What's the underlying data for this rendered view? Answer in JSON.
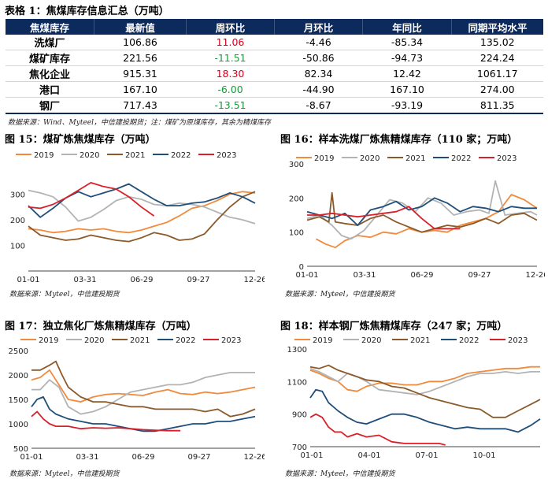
{
  "table": {
    "title": "表格 1：焦煤库存信息汇总（万吨）",
    "headers": [
      "焦煤库存",
      "最新值",
      "周环比",
      "月环比",
      "年同比",
      "同期平均水平"
    ],
    "rows": [
      {
        "name": "洗煤厂",
        "latest": "106.86",
        "wow": "11.06",
        "mom": "-4.46",
        "yoy": "-85.34",
        "avg": "135.02"
      },
      {
        "name": "煤矿库存",
        "latest": "221.56",
        "wow": "-11.51",
        "mom": "-50.86",
        "yoy": "-94.73",
        "avg": "224.24"
      },
      {
        "name": "焦化企业",
        "latest": "915.31",
        "wow": "18.30",
        "mom": "82.34",
        "yoy": "12.42",
        "avg": "1061.17"
      },
      {
        "name": "港口",
        "latest": "167.10",
        "wow": "-6.00",
        "mom": "-44.90",
        "yoy": "167.10",
        "avg": "274.00"
      },
      {
        "name": "钢厂",
        "latest": "717.43",
        "wow": "-13.51",
        "mom": "-8.67",
        "yoy": "-93.19",
        "avg": "811.35"
      }
    ],
    "source": "数据来源：Wind、Myteel，中信建投期货；注：煤矿为原煤库存，其余为精煤库存"
  },
  "colors": {
    "2019": "#f28a3c",
    "2020": "#b3b3b3",
    "2021": "#8b5a2b",
    "2022": "#1f4e79",
    "2023": "#d9202a",
    "header": "#0d2a5c",
    "positive": "#d0021b",
    "negative": "#1a9a3a"
  },
  "chart_data": [
    {
      "id": "c15",
      "type": "line",
      "title": "图 15：煤矿炼焦煤库存（万吨）",
      "source": "数据来源：Myteel，中信建投期货",
      "x_ticks": [
        "01-01",
        "03-31",
        "06-29",
        "09-27",
        "12-26"
      ],
      "ylim": [
        0,
        400
      ],
      "y_ticks": [
        0,
        100,
        200,
        300,
        400
      ],
      "y_tick_labels": [
        "",
        "100",
        "200",
        "300",
        ""
      ],
      "x_range": [
        1,
        360
      ],
      "series": [
        {
          "name": "2019",
          "x": [
            1,
            20,
            40,
            60,
            80,
            100,
            120,
            140,
            160,
            180,
            200,
            220,
            240,
            260,
            280,
            300,
            320,
            340,
            360
          ],
          "values": [
            165,
            160,
            150,
            155,
            165,
            160,
            165,
            155,
            150,
            160,
            175,
            190,
            215,
            245,
            255,
            275,
            300,
            310,
            305
          ]
        },
        {
          "name": "2020",
          "x": [
            1,
            20,
            40,
            60,
            80,
            100,
            120,
            140,
            160,
            180,
            200,
            220,
            240,
            260,
            280,
            300,
            320,
            340,
            360
          ],
          "values": [
            315,
            305,
            290,
            250,
            195,
            210,
            240,
            275,
            290,
            280,
            260,
            255,
            265,
            260,
            250,
            230,
            210,
            200,
            185
          ]
        },
        {
          "name": "2021",
          "x": [
            1,
            20,
            40,
            60,
            80,
            100,
            120,
            140,
            160,
            180,
            200,
            220,
            240,
            260,
            280,
            300,
            320,
            340,
            360
          ],
          "values": [
            175,
            140,
            130,
            120,
            125,
            140,
            130,
            120,
            115,
            130,
            150,
            140,
            120,
            125,
            145,
            200,
            250,
            290,
            310
          ]
        },
        {
          "name": "2022",
          "x": [
            1,
            20,
            40,
            60,
            80,
            100,
            120,
            140,
            160,
            180,
            200,
            220,
            240,
            260,
            280,
            300,
            320,
            340,
            360
          ],
          "values": [
            255,
            210,
            245,
            285,
            310,
            290,
            305,
            320,
            340,
            310,
            280,
            255,
            255,
            265,
            270,
            285,
            305,
            290,
            265
          ]
        },
        {
          "name": "2023",
          "x": [
            1,
            20,
            40,
            60,
            80,
            100,
            120,
            140,
            160,
            180,
            200
          ],
          "values": [
            250,
            245,
            260,
            285,
            315,
            345,
            330,
            320,
            290,
            250,
            215
          ]
        }
      ]
    },
    {
      "id": "c16",
      "type": "line",
      "title": "图 16：样本洗煤厂炼焦精煤库存（110 家；万吨）",
      "source": "数据来源：Myteel，中信建投期货",
      "x_ticks": [
        "01-01",
        "03-31",
        "06-29",
        "09-27",
        "12-26"
      ],
      "ylim": [
        0,
        300
      ],
      "y_ticks": [
        0,
        100,
        200,
        300
      ],
      "y_tick_labels": [
        "0",
        "100",
        "200",
        "300"
      ],
      "x_range": [
        1,
        360
      ],
      "series": [
        {
          "name": "2019",
          "x": [
            15,
            30,
            45,
            60,
            80,
            100,
            120,
            140,
            160,
            180,
            200,
            220,
            240,
            260,
            280,
            300,
            320,
            340,
            360
          ],
          "values": [
            80,
            65,
            55,
            75,
            90,
            85,
            100,
            95,
            110,
            100,
            105,
            100,
            120,
            130,
            140,
            160,
            210,
            195,
            170
          ]
        },
        {
          "name": "2020",
          "x": [
            1,
            20,
            40,
            55,
            70,
            90,
            110,
            130,
            150,
            170,
            190,
            210,
            230,
            250,
            270,
            285,
            295,
            310,
            330,
            350,
            360
          ],
          "values": [
            140,
            150,
            120,
            90,
            80,
            105,
            150,
            195,
            185,
            160,
            200,
            185,
            150,
            160,
            165,
            155,
            250,
            150,
            155,
            160,
            150
          ]
        },
        {
          "name": "2021",
          "x": [
            1,
            20,
            35,
            40,
            45,
            60,
            80,
            100,
            120,
            140,
            160,
            180,
            200,
            220,
            240,
            260,
            280,
            300,
            320,
            340,
            360
          ],
          "values": [
            135,
            145,
            130,
            215,
            130,
            125,
            120,
            140,
            150,
            130,
            115,
            100,
            110,
            120,
            115,
            125,
            140,
            125,
            150,
            155,
            135
          ]
        },
        {
          "name": "2022",
          "x": [
            1,
            20,
            40,
            60,
            80,
            100,
            120,
            140,
            160,
            180,
            200,
            220,
            240,
            260,
            280,
            300,
            320,
            340,
            360
          ],
          "values": [
            160,
            150,
            140,
            155,
            120,
            165,
            175,
            190,
            165,
            175,
            200,
            185,
            160,
            175,
            170,
            160,
            175,
            170,
            170
          ]
        },
        {
          "name": "2023",
          "x": [
            1,
            20,
            40,
            60,
            80,
            100,
            120,
            140,
            160,
            180,
            200,
            220,
            240
          ],
          "values": [
            150,
            150,
            155,
            150,
            145,
            150,
            155,
            160,
            175,
            140,
            110,
            110,
            110
          ]
        }
      ]
    },
    {
      "id": "c17",
      "type": "line",
      "title": "图 17：独立焦化厂炼焦精煤库存（万吨）",
      "source": "数据来源：Myteel，中信建投期货",
      "x_ticks": [
        "01-01",
        "03-31",
        "06-29",
        "09-27",
        "12-26"
      ],
      "ylim": [
        500,
        2500
      ],
      "y_ticks": [
        500,
        1000,
        1500,
        2000,
        2500
      ],
      "y_tick_labels": [
        "500",
        "1000",
        "1500",
        "2000",
        "2500"
      ],
      "x_range": [
        1,
        360
      ],
      "series": [
        {
          "name": "2019",
          "x": [
            1,
            15,
            30,
            45,
            60,
            80,
            100,
            120,
            140,
            160,
            180,
            200,
            220,
            240,
            260,
            280,
            300,
            320,
            340,
            360
          ],
          "values": [
            1900,
            1950,
            2100,
            1800,
            1500,
            1450,
            1550,
            1600,
            1620,
            1600,
            1580,
            1650,
            1700,
            1620,
            1600,
            1650,
            1620,
            1650,
            1700,
            1750
          ]
        },
        {
          "name": "2020",
          "x": [
            1,
            15,
            30,
            45,
            60,
            80,
            100,
            120,
            140,
            160,
            180,
            200,
            220,
            240,
            260,
            280,
            300,
            320,
            340,
            360
          ],
          "values": [
            1700,
            1700,
            1900,
            1750,
            1350,
            1200,
            1250,
            1350,
            1500,
            1650,
            1700,
            1750,
            1800,
            1800,
            1850,
            1950,
            2000,
            2050,
            2050,
            2050
          ]
        },
        {
          "name": "2021",
          "x": [
            1,
            15,
            30,
            40,
            50,
            60,
            80,
            100,
            120,
            140,
            160,
            180,
            200,
            220,
            240,
            260,
            280,
            300,
            320,
            340,
            360
          ],
          "values": [
            2100,
            2100,
            2200,
            2280,
            2000,
            1750,
            1550,
            1450,
            1450,
            1400,
            1350,
            1350,
            1300,
            1300,
            1300,
            1300,
            1250,
            1300,
            1150,
            1200,
            1300
          ]
        },
        {
          "name": "2022",
          "x": [
            1,
            10,
            20,
            30,
            40,
            50,
            60,
            80,
            100,
            120,
            140,
            160,
            180,
            200,
            220,
            240,
            260,
            280,
            300,
            320,
            340,
            360
          ],
          "values": [
            1350,
            1500,
            1550,
            1300,
            1200,
            1150,
            1100,
            1050,
            1000,
            1000,
            950,
            900,
            850,
            850,
            900,
            950,
            1000,
            1000,
            1050,
            1050,
            1100,
            1150
          ]
        },
        {
          "name": "2023",
          "x": [
            1,
            10,
            20,
            30,
            40,
            60,
            80,
            100,
            120,
            140,
            160,
            180,
            200,
            220,
            240
          ],
          "values": [
            1150,
            1250,
            1100,
            1000,
            950,
            950,
            900,
            920,
            910,
            920,
            900,
            880,
            870,
            860,
            860
          ]
        }
      ]
    },
    {
      "id": "c18",
      "type": "line",
      "title": "图 18：样本钢厂炼焦精煤库存（247 家；万吨）",
      "source": "数据来源：Myteel，中信建投期货",
      "x_ticks": [
        "01-01",
        "04-01",
        "07-01",
        "10-01"
      ],
      "ylim": [
        700,
        1300
      ],
      "y_ticks": [
        700,
        900,
        1100,
        1300
      ],
      "y_tick_labels": [
        "700",
        "900",
        "1100",
        "1300"
      ],
      "x_range": [
        1,
        365
      ],
      "series": [
        {
          "name": "2019",
          "x": [
            1,
            15,
            30,
            45,
            60,
            75,
            90,
            110,
            130,
            150,
            170,
            190,
            210,
            230,
            250,
            270,
            290,
            310,
            330,
            350,
            365
          ],
          "values": [
            1170,
            1150,
            1120,
            1100,
            1050,
            1040,
            1070,
            1090,
            1090,
            1080,
            1080,
            1100,
            1100,
            1120,
            1150,
            1160,
            1170,
            1180,
            1180,
            1190,
            1190
          ]
        },
        {
          "name": "2020",
          "x": [
            1,
            15,
            30,
            45,
            60,
            75,
            90,
            110,
            130,
            150,
            170,
            190,
            210,
            230,
            250,
            270,
            290,
            310,
            330,
            350,
            365
          ],
          "values": [
            1180,
            1160,
            1130,
            1100,
            1150,
            1130,
            1100,
            1050,
            1040,
            1030,
            1020,
            1040,
            1070,
            1100,
            1130,
            1150,
            1150,
            1160,
            1150,
            1160,
            1160
          ]
        },
        {
          "name": "2021",
          "x": [
            1,
            15,
            30,
            45,
            60,
            75,
            90,
            110,
            130,
            150,
            170,
            190,
            210,
            230,
            250,
            270,
            290,
            310,
            330,
            350,
            365
          ],
          "values": [
            1190,
            1180,
            1200,
            1170,
            1150,
            1130,
            1110,
            1100,
            1070,
            1060,
            1030,
            1000,
            980,
            960,
            940,
            930,
            880,
            880,
            920,
            960,
            990
          ]
        },
        {
          "name": "2022",
          "x": [
            1,
            10,
            20,
            30,
            45,
            60,
            75,
            90,
            110,
            130,
            150,
            170,
            190,
            210,
            230,
            250,
            270,
            290,
            310,
            330,
            350,
            365
          ],
          "values": [
            1000,
            1050,
            1040,
            970,
            920,
            880,
            850,
            840,
            870,
            900,
            900,
            880,
            850,
            830,
            810,
            820,
            810,
            810,
            810,
            790,
            830,
            870
          ]
        },
        {
          "name": "2023",
          "x": [
            1,
            10,
            20,
            30,
            40,
            50,
            60,
            75,
            90,
            110,
            130,
            150,
            170,
            190,
            205,
            215
          ],
          "values": [
            880,
            900,
            880,
            820,
            790,
            790,
            760,
            780,
            760,
            770,
            730,
            720,
            720,
            720,
            720,
            710
          ]
        }
      ]
    }
  ]
}
